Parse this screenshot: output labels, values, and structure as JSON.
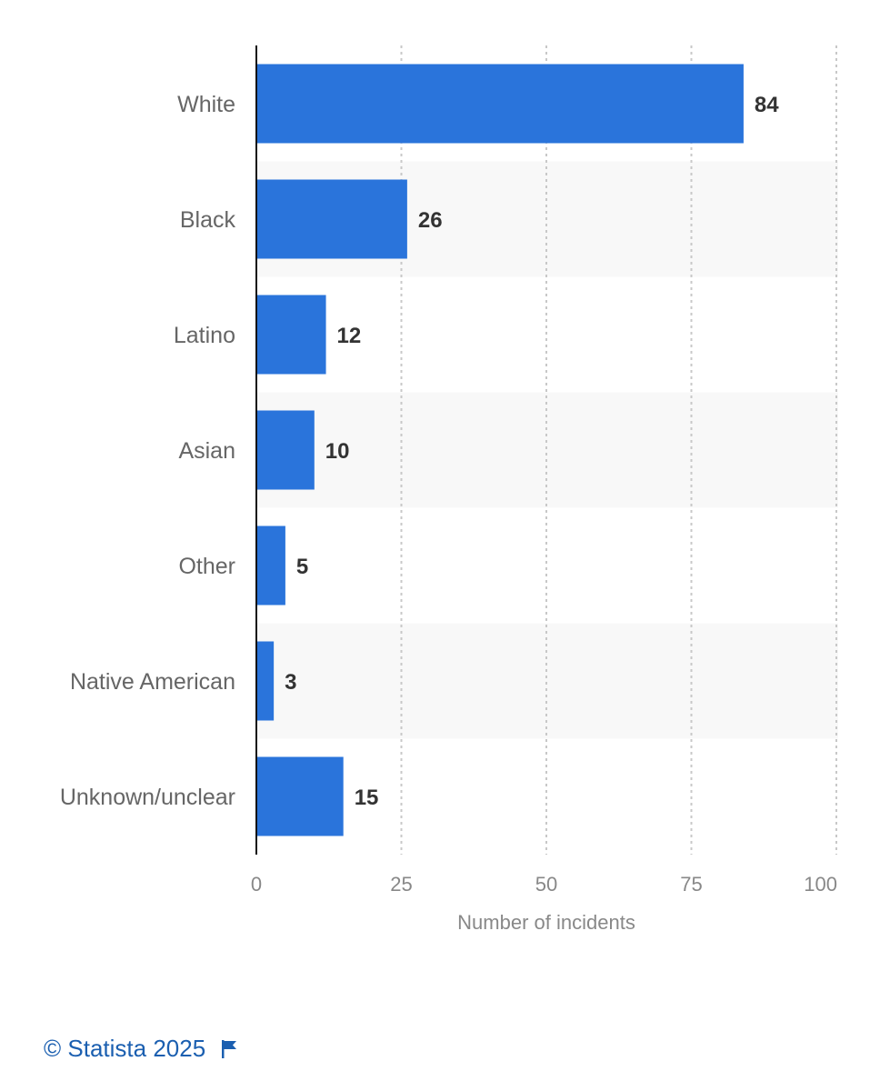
{
  "chart_data": {
    "type": "bar",
    "orientation": "horizontal",
    "categories": [
      "White",
      "Black",
      "Latino",
      "Asian",
      "Other",
      "Native American",
      "Unknown/unclear"
    ],
    "values": [
      84,
      26,
      12,
      10,
      5,
      3,
      15
    ],
    "xlabel": "Number of incidents",
    "xlim": [
      0,
      100
    ],
    "xticks": [
      0,
      25,
      50,
      75,
      100
    ],
    "grid": true,
    "colors": {
      "bar": "#2a74db",
      "band": "#f8f8f8",
      "grid": "#c8c8c8",
      "axis": "#111111",
      "label": "#666666",
      "value": "#333333"
    }
  },
  "footer": {
    "copyright": "© Statista 2025",
    "icon": "flag-icon",
    "color": "#1b5fb0"
  }
}
